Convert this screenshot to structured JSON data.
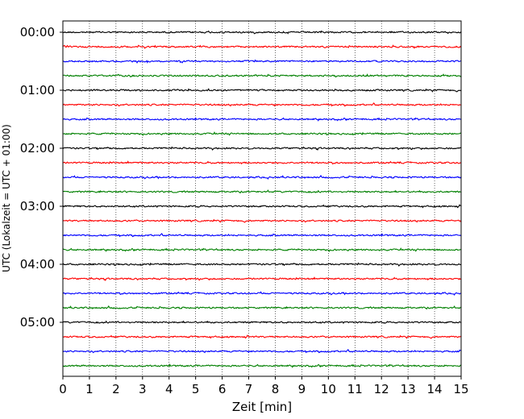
{
  "chart_data": {
    "type": "line",
    "subtype": "helicorder",
    "xlabel": "Zeit  [min]",
    "ylabel": "UTC (Lokalzeit = UTC + 01:00)",
    "xlim": [
      0,
      15
    ],
    "x_ticks": [
      0,
      1,
      2,
      3,
      4,
      5,
      6,
      7,
      8,
      9,
      10,
      11,
      12,
      13,
      14,
      15
    ],
    "y_tick_labels": [
      "00:00",
      "01:00",
      "02:00",
      "03:00",
      "04:00",
      "05:00"
    ],
    "rows_per_hour": 4,
    "row_count": 24,
    "row_colors": [
      "#000000",
      "#ff0000",
      "#0000ff",
      "#008000"
    ],
    "grid": {
      "x": true,
      "y": false,
      "style": "dotted"
    },
    "legend": "none"
  }
}
